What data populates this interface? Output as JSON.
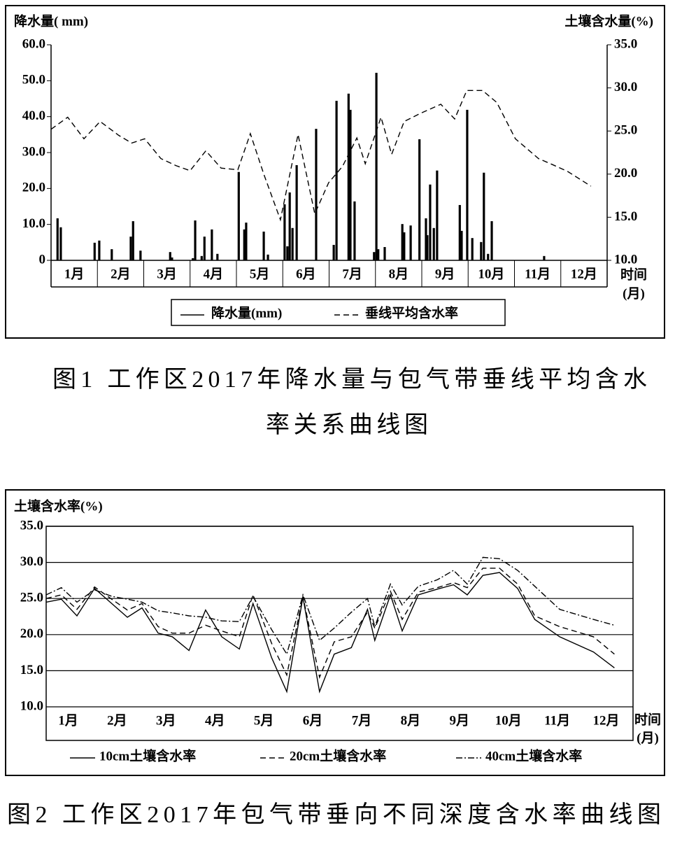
{
  "chart_data": [
    {
      "type": "bar",
      "ylabel": "降水量( mm)",
      "y2label": "土壤含水量(%)",
      "xlabel": [
        "时间",
        "(月)"
      ],
      "categories": [
        "1月",
        "2月",
        "3月",
        "4月",
        "5月",
        "6月",
        "7月",
        "8月",
        "9月",
        "10月",
        "11月",
        "12月"
      ],
      "xlim": [
        0,
        12
      ],
      "ylim": [
        0,
        60
      ],
      "yticks": [
        0,
        {
          "value": 10,
          "label": "10.0"
        },
        {
          "value": 20,
          "label": "20.0"
        },
        {
          "value": 30,
          "label": "30.0"
        },
        {
          "value": 40,
          "label": "40.0"
        },
        {
          "value": 50,
          "label": "50.0"
        },
        {
          "value": 60,
          "label": "60.0"
        }
      ],
      "y2lim": [
        10,
        35
      ],
      "y2ticks": [
        {
          "value": 10,
          "label": "10.0"
        },
        {
          "value": 15,
          "label": "15.0"
        },
        {
          "value": 20,
          "label": "20.0"
        },
        {
          "value": 25,
          "label": "25.0"
        },
        {
          "value": 30,
          "label": "30.0"
        },
        {
          "value": 35,
          "label": "35.0"
        }
      ],
      "series": [
        {
          "name": "降水量(mm)",
          "color": "#000000",
          "x": [
            0.14,
            0.21,
            0.94,
            1.04,
            1.31,
            1.72,
            1.77,
            1.93,
            2.57,
            2.61,
            3.06,
            3.11,
            3.25,
            3.31,
            3.47,
            3.59,
            4.05,
            4.17,
            4.21,
            4.59,
            4.68,
            5.04,
            5.1,
            5.15,
            5.21,
            5.3,
            5.72,
            6.1,
            6.16,
            6.42,
            6.46,
            6.55,
            6.97,
            7.02,
            7.06,
            7.2,
            7.58,
            7.62,
            7.76,
            7.95,
            8.09,
            8.12,
            8.18,
            8.26,
            8.33,
            8.82,
            8.86,
            8.98,
            9.09,
            9.28,
            9.34,
            9.43,
            9.51,
            10.64
          ],
          "values": [
            11.7,
            9.2,
            4.9,
            5.5,
            3.1,
            6.6,
            10.9,
            2.7,
            2.3,
            0.8,
            0.6,
            11.1,
            1.2,
            6.6,
            8.6,
            1.8,
            24.6,
            8.6,
            10.5,
            8.0,
            1.6,
            15.6,
            3.9,
            18.9,
            9.0,
            26.5,
            36.6,
            4.3,
            44.4,
            46.4,
            41.9,
            16.4,
            2.3,
            52.2,
            3.1,
            3.7,
            10.1,
            7.8,
            9.7,
            33.7,
            11.7,
            7.0,
            21.1,
            9.0,
            25.0,
            15.4,
            8.2,
            41.9,
            6.2,
            5.1,
            24.4,
            1.8,
            10.9,
            1.2
          ]
        },
        {
          "name": "垂线平均含水率",
          "type": "line",
          "dash": "dashed",
          "color": "#000000",
          "axis": "y2",
          "x": [
            0,
            0.36,
            0.71,
            1.06,
            1.46,
            1.74,
            2.02,
            2.37,
            2.69,
            3.0,
            3.34,
            3.67,
            4.03,
            4.3,
            4.59,
            4.95,
            5.33,
            5.69,
            5.99,
            6.29,
            6.6,
            6.78,
            7.12,
            7.35,
            7.62,
            7.95,
            8.41,
            8.71,
            8.97,
            9.31,
            9.62,
            10.02,
            10.52,
            10.82,
            11.15,
            11.65
          ],
          "values": [
            25.2,
            26.6,
            24.1,
            26.1,
            24.5,
            23.6,
            24.1,
            21.8,
            21.0,
            20.4,
            22.7,
            20.7,
            20.5,
            24.7,
            20.0,
            14.7,
            24.6,
            15.4,
            19.0,
            20.9,
            24.2,
            21.2,
            26.6,
            22.3,
            26.1,
            27.0,
            28.1,
            26.4,
            29.7,
            29.7,
            28.3,
            24.1,
            21.8,
            21.1,
            20.3,
            18.6
          ]
        }
      ],
      "caption": [
        "图1  工作区2017年降水量与包气带垂线平均含水",
        "率关系曲线图"
      ]
    },
    {
      "type": "line",
      "ylabel": "土壤含水率(%)",
      "xlabel": [
        "时间",
        "(月)"
      ],
      "categories": [
        "1月",
        "2月",
        "3月",
        "4月",
        "5月",
        "6月",
        "7月",
        "8月",
        "9月",
        "10月",
        "11月",
        "12月"
      ],
      "xlim": [
        0,
        12
      ],
      "x": [
        0,
        0.31,
        0.63,
        0.99,
        1.34,
        1.66,
        1.96,
        2.29,
        2.58,
        2.92,
        3.26,
        3.59,
        3.95,
        4.23,
        4.61,
        4.92,
        5.25,
        5.59,
        5.89,
        6.24,
        6.57,
        6.72,
        7.04,
        7.28,
        7.61,
        8.0,
        8.33,
        8.61,
        8.93,
        9.27,
        9.64,
        9.99,
        10.5,
        11.19,
        11.62
      ],
      "ylim": [
        10,
        35
      ],
      "yticks": [
        {
          "value": 10,
          "label": "10.0"
        },
        {
          "value": 15,
          "label": "15.0"
        },
        {
          "value": 20,
          "label": "20.0"
        },
        {
          "value": 25,
          "label": "25.0"
        },
        {
          "value": 30,
          "label": "30.0"
        },
        {
          "value": 35,
          "label": "35.0"
        }
      ],
      "grid": true,
      "series": [
        {
          "name": "10cm土壤含水率",
          "color": "#000000",
          "dash": "solid",
          "values": [
            24.5,
            24.9,
            22.6,
            26.4,
            24.3,
            22.4,
            23.7,
            20.2,
            19.7,
            17.8,
            23.4,
            19.7,
            18.0,
            24.3,
            16.8,
            12.1,
            25.2,
            12.1,
            17.3,
            18.2,
            23.5,
            19.2,
            25.5,
            20.5,
            25.5,
            26.3,
            26.9,
            25.5,
            28.2,
            28.6,
            26.4,
            22.1,
            19.7,
            17.6,
            15.4
          ]
        },
        {
          "name": "20cm土壤含水率",
          "color": "#000000",
          "dash": "dashed",
          "values": [
            25.0,
            25.5,
            23.5,
            26.6,
            24.9,
            23.4,
            24.3,
            21.1,
            20.2,
            20.2,
            21.3,
            20.5,
            19.7,
            25.5,
            18.8,
            14.4,
            25.3,
            14.1,
            19.0,
            19.7,
            23.1,
            20.9,
            26.0,
            22.1,
            25.9,
            26.5,
            27.2,
            26.5,
            29.2,
            29.2,
            27.0,
            22.6,
            21.1,
            19.7,
            17.3
          ]
        },
        {
          "name": "40cm土壤含水率",
          "color": "#000000",
          "dash": "dashdot",
          "values": [
            25.5,
            26.5,
            24.5,
            26.2,
            25.3,
            24.9,
            24.5,
            23.3,
            23.0,
            22.6,
            22.4,
            21.9,
            21.8,
            25.3,
            20.7,
            17.3,
            25.5,
            19.2,
            20.9,
            23.1,
            25.0,
            21.1,
            27.0,
            24.1,
            26.7,
            27.6,
            28.9,
            27.0,
            30.7,
            30.5,
            28.9,
            26.7,
            23.5,
            22.1,
            21.3
          ]
        }
      ],
      "caption": "图2  工作区2017年包气带垂向不同深度含水率曲线图"
    }
  ]
}
